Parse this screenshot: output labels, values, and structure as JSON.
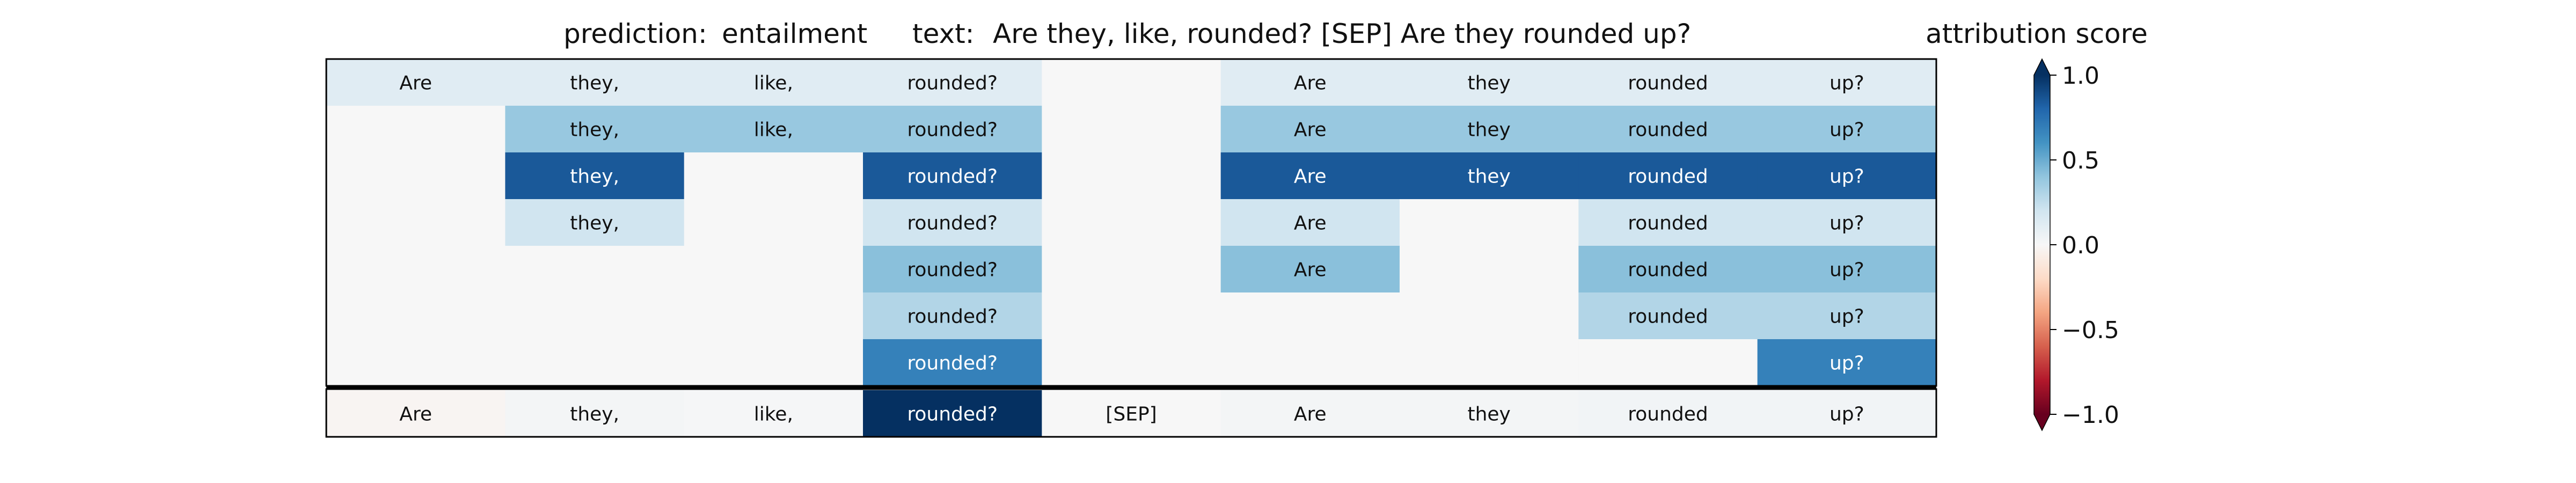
{
  "header": {
    "prediction_label": "prediction:",
    "prediction_value": "entailment",
    "text_label": "text:",
    "text_value": "Are they, like, rounded? [SEP] Are they rounded up?"
  },
  "colorbar": {
    "title": "attribution score",
    "ticks": [
      "1.0",
      "0.5",
      "0.0",
      "−0.5",
      "−1.0"
    ],
    "tick_values": [
      1.0,
      0.5,
      0.0,
      -0.5,
      -1.0
    ],
    "range": [
      -1.0,
      1.0
    ],
    "extend": "both",
    "colormap": "RdBu"
  },
  "chart_data": {
    "type": "heatmap",
    "columns": [
      "Are",
      "they,",
      "like,",
      "rounded?",
      "[SEP]",
      "Are",
      "they",
      "rounded",
      "up?"
    ],
    "rows": [
      {
        "cells": [
          {
            "label": "Are",
            "score": 0.12
          },
          {
            "label": "they,",
            "score": 0.12
          },
          {
            "label": "like,",
            "score": 0.12
          },
          {
            "label": "rounded?",
            "score": 0.12
          },
          {
            "label": "",
            "score": 0.0
          },
          {
            "label": "Are",
            "score": 0.12
          },
          {
            "label": "they",
            "score": 0.12
          },
          {
            "label": "rounded",
            "score": 0.12
          },
          {
            "label": "up?",
            "score": 0.12
          }
        ]
      },
      {
        "cells": [
          {
            "label": "",
            "score": 0.0
          },
          {
            "label": "they,",
            "score": 0.38
          },
          {
            "label": "like,",
            "score": 0.38
          },
          {
            "label": "rounded?",
            "score": 0.38
          },
          {
            "label": "",
            "score": 0.0
          },
          {
            "label": "Are",
            "score": 0.38
          },
          {
            "label": "they",
            "score": 0.38
          },
          {
            "label": "rounded",
            "score": 0.38
          },
          {
            "label": "up?",
            "score": 0.38
          }
        ]
      },
      {
        "cells": [
          {
            "label": "",
            "score": 0.0
          },
          {
            "label": "they,",
            "score": 0.85
          },
          {
            "label": "",
            "score": 0.0
          },
          {
            "label": "rounded?",
            "score": 0.85
          },
          {
            "label": "",
            "score": 0.0
          },
          {
            "label": "Are",
            "score": 0.85
          },
          {
            "label": "they",
            "score": 0.85
          },
          {
            "label": "rounded",
            "score": 0.85
          },
          {
            "label": "up?",
            "score": 0.85
          }
        ]
      },
      {
        "cells": [
          {
            "label": "",
            "score": 0.0
          },
          {
            "label": "they,",
            "score": 0.2
          },
          {
            "label": "",
            "score": 0.0
          },
          {
            "label": "rounded?",
            "score": 0.2
          },
          {
            "label": "",
            "score": 0.0
          },
          {
            "label": "Are",
            "score": 0.2
          },
          {
            "label": "",
            "score": 0.0
          },
          {
            "label": "rounded",
            "score": 0.2
          },
          {
            "label": "up?",
            "score": 0.2
          }
        ]
      },
      {
        "cells": [
          {
            "label": "",
            "score": 0.0
          },
          {
            "label": "",
            "score": 0.0
          },
          {
            "label": "",
            "score": 0.0
          },
          {
            "label": "rounded?",
            "score": 0.42
          },
          {
            "label": "",
            "score": 0.0
          },
          {
            "label": "Are",
            "score": 0.42
          },
          {
            "label": "",
            "score": 0.0
          },
          {
            "label": "rounded",
            "score": 0.42
          },
          {
            "label": "up?",
            "score": 0.42
          }
        ]
      },
      {
        "cells": [
          {
            "label": "",
            "score": 0.0
          },
          {
            "label": "",
            "score": 0.0
          },
          {
            "label": "",
            "score": 0.0
          },
          {
            "label": "rounded?",
            "score": 0.3
          },
          {
            "label": "",
            "score": 0.0
          },
          {
            "label": "",
            "score": 0.0
          },
          {
            "label": "",
            "score": 0.0
          },
          {
            "label": "rounded",
            "score": 0.3
          },
          {
            "label": "up?",
            "score": 0.3
          }
        ]
      },
      {
        "cells": [
          {
            "label": "",
            "score": 0.0
          },
          {
            "label": "",
            "score": 0.0
          },
          {
            "label": "",
            "score": 0.0
          },
          {
            "label": "rounded?",
            "score": 0.68
          },
          {
            "label": "",
            "score": 0.0
          },
          {
            "label": "",
            "score": 0.0
          },
          {
            "label": "",
            "score": 0.0
          },
          {
            "label": "",
            "score": 0.0
          },
          {
            "label": "up?",
            "score": 0.68
          }
        ]
      }
    ],
    "summary_row": {
      "cells": [
        {
          "label": "Are",
          "score": -0.02
        },
        {
          "label": "they,",
          "score": 0.02
        },
        {
          "label": "like,",
          "score": 0.01
        },
        {
          "label": "rounded?",
          "score": 1.0
        },
        {
          "label": "[SEP]",
          "score": 0.0
        },
        {
          "label": "Are",
          "score": 0.02
        },
        {
          "label": "they",
          "score": 0.02
        },
        {
          "label": "rounded",
          "score": 0.03
        },
        {
          "label": "up?",
          "score": 0.03
        }
      ]
    }
  }
}
